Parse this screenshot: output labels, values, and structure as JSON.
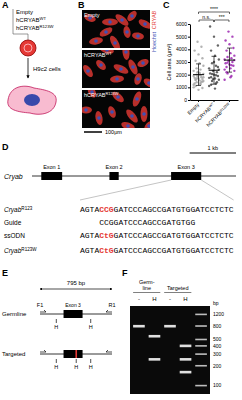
{
  "panel_labels": [
    "A",
    "B",
    "C",
    "D",
    "E",
    "F"
  ],
  "panel_a": {
    "constructs": [
      [
        "Empty"
      ],
      [
        "hCRYAB",
        "WT"
      ],
      [
        "hCRYAB",
        "R123W"
      ]
    ],
    "cells": "H9c2 cells"
  },
  "panel_b": {
    "conditions": [
      [
        "Empty"
      ],
      [
        "hCRYAB",
        "WT"
      ],
      [
        "hCRYAB",
        "R123W"
      ]
    ],
    "channels": [
      {
        "name": "CRYAB",
        "color": "#e53935"
      },
      {
        "name": "Hoechst",
        "color": "#3f51b5"
      }
    ],
    "scale_bar": "100μm"
  },
  "chart_data": {
    "type": "strip",
    "y_label": "Cell area (μm²)",
    "categories": [
      [
        "Empty"
      ],
      [
        "hCRYAB",
        "WT"
      ],
      [
        "hCRYAB",
        "R123W"
      ]
    ],
    "groups": [
      {
        "color": "#a6a6a6",
        "mean": 2000,
        "error": 850,
        "values": [
          1200,
          1350,
          1400,
          1500,
          1550,
          1600,
          1650,
          1700,
          1750,
          1800,
          1850,
          1900,
          1950,
          2000,
          2050,
          2100,
          1100,
          950,
          800,
          1300,
          1450,
          2200,
          2300,
          2400,
          2500,
          2700,
          2900,
          3100,
          3300,
          3600,
          3900,
          4200,
          4600,
          1000,
          1250,
          1700,
          1800,
          2150,
          1600,
          1450
        ]
      },
      {
        "color": "#4a4a4a",
        "mean": 2350,
        "error": 1100,
        "values": [
          1100,
          1300,
          1500,
          1600,
          1700,
          1800,
          1900,
          2000,
          2100,
          2200,
          2300,
          2500,
          2700,
          2900,
          3200,
          3500,
          3900,
          4300,
          5000,
          5800,
          1400,
          1650,
          1750,
          1950,
          2050,
          2400,
          900,
          1200,
          2600,
          3000
        ]
      },
      {
        "color": "#9c27b0",
        "mean": 3150,
        "error": 950,
        "values": [
          1600,
          1900,
          2100,
          2300,
          2500,
          2600,
          2700,
          2800,
          2900,
          3000,
          3100,
          3200,
          3300,
          3400,
          3500,
          3700,
          3900,
          4100,
          4400,
          4700,
          5000,
          5400,
          2400,
          2750,
          2950,
          3150,
          1800,
          2200
        ]
      }
    ],
    "ylim": [
      0,
      6000
    ],
    "yticks": [
      0,
      1000,
      2000,
      3000,
      4000,
      5000,
      6000
    ],
    "annotations": [
      {
        "text": "n.s.",
        "from": 0,
        "to": 1
      },
      {
        "text": "****",
        "from": 0,
        "to": 2
      },
      {
        "text": "***",
        "from": 1,
        "to": 2
      }
    ]
  },
  "panel_d": {
    "gene": "Cryab",
    "xlim": [
      0,
      4400
    ],
    "exons": [
      {
        "label": "Exon 1",
        "start": 200,
        "end": 650
      },
      {
        "label": "Exon 2",
        "start": 1670,
        "end": 1870
      },
      {
        "label": "Exon 3",
        "start": 3000,
        "end": 3650
      }
    ],
    "scale_bar": {
      "label": "1 kb",
      "length": 1000
    },
    "sequences": [
      {
        "label": [
          "Cryab",
          "R123"
        ],
        "segments": [
          {
            "text": "AGTA"
          },
          {
            "text": "CCG",
            "color": "#e53935"
          },
          {
            "text": "GATCCCAGCCGATGTGGATCCTCTC"
          }
        ]
      },
      {
        "label": [
          "Guide"
        ],
        "segments": [
          {
            "text": "CCGGATCCCAGCCGATGTGG"
          }
        ]
      },
      {
        "label": [
          "ssODN"
        ],
        "segments": [
          {
            "text": "AGTA"
          },
          {
            "text": "CtG",
            "color": "#e53935"
          },
          {
            "text": "GATCCCAGCCGATGTGGATCCTCTC"
          }
        ]
      },
      {
        "label": [
          "Cryab",
          "R123W"
        ],
        "segments": [
          {
            "text": "AGTA"
          },
          {
            "text": "CtG",
            "color": "#e53935"
          },
          {
            "text": "GATCCCAGCCGATGTGGATCCTCTC"
          }
        ]
      }
    ]
  },
  "panel_e": {
    "amplicon": {
      "label": "795 bp",
      "length": 795
    },
    "forward": "F1",
    "reverse": "R1",
    "exon": {
      "label": "Exon 3",
      "start": 260,
      "end": 470
    },
    "site_label": "H",
    "rows": [
      {
        "name": "Germline",
        "sites": [
          180,
          560
        ]
      },
      {
        "name": "Targeted",
        "sites": [
          180,
          400,
          560
        ],
        "mutation": 400
      }
    ]
  },
  "panel_f": {
    "groups": [
      {
        "label": [
          "Germ-",
          "line"
        ],
        "lanes": [
          0,
          1
        ]
      },
      {
        "label": [
          "Targeted"
        ],
        "lanes": [
          2,
          3
        ]
      }
    ],
    "lanes": [
      {
        "label": "-",
        "bands": [
          795
        ]
      },
      {
        "label": "H",
        "bands": [
          560,
          250
        ]
      },
      {
        "label": "-",
        "bands": [
          795
        ]
      },
      {
        "label": "H",
        "bands": [
          400,
          250,
          160
        ]
      }
    ],
    "ladder": {
      "unit": "bp",
      "values": [
        1200,
        800,
        500,
        400,
        300,
        200,
        100
      ]
    },
    "ylim": [
      80,
      1500
    ],
    "log": true
  }
}
